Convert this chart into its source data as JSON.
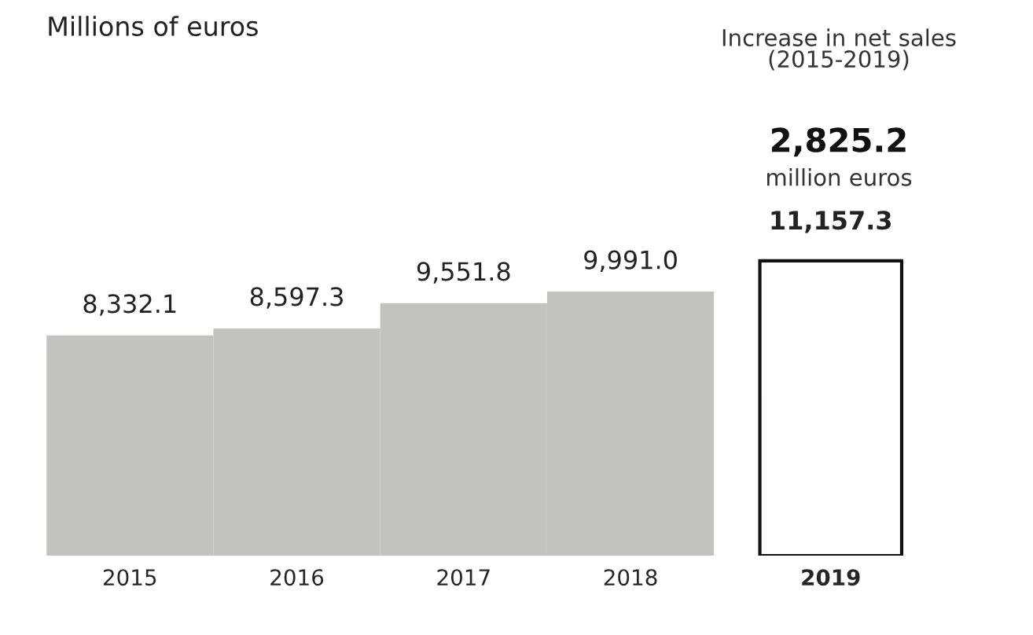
{
  "chart_data": {
    "type": "bar",
    "title": "Millions of euros",
    "categories": [
      "2015",
      "2016",
      "2017",
      "2018",
      "2019"
    ],
    "values": [
      8332.1,
      8597.3,
      9551.8,
      9991.0,
      11157.3
    ],
    "colors": [
      "#c4c2bd",
      "#c4c2bd",
      "#c4c2bd",
      "#c4c2bd",
      "#ffffff"
    ],
    "value_labels": [
      "8,332.1",
      "8,597.3",
      "9,551.8",
      "9,991.0",
      "11,157.3"
    ],
    "annotations": [
      "Increase in net sales\n(2015-2019)",
      "2,825.2",
      "million euros"
    ],
    "grid": false,
    "legend": false
  }
}
